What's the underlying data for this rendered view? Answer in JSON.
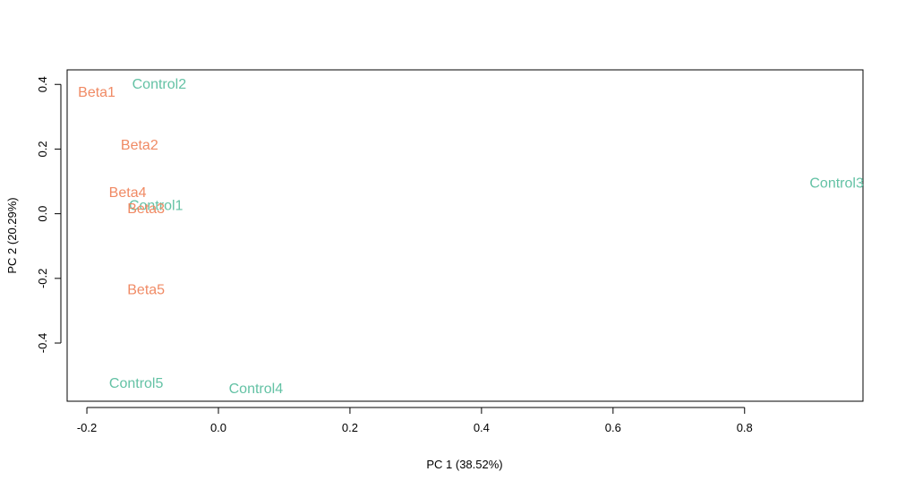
{
  "chart_data": {
    "type": "scatter",
    "title": "",
    "xlabel": "PC 1 (38.52%)",
    "ylabel": "PC 2 (20.29%)",
    "xlim": [
      -0.23,
      0.98
    ],
    "ylim": [
      -0.58,
      0.445
    ],
    "xticks": [
      -0.2,
      0.0,
      0.2,
      0.4,
      0.6,
      0.8
    ],
    "xtick_labels": [
      "-0.2",
      "0.0",
      "0.2",
      "0.4",
      "0.6",
      "0.8"
    ],
    "yticks": [
      -0.4,
      -0.2,
      0.0,
      0.2,
      0.4
    ],
    "ytick_labels": [
      "-0.4",
      "-0.2",
      "0.0",
      "0.2",
      "0.4"
    ],
    "grid": false,
    "legend": "none",
    "colors": {
      "Beta": "#f08a64",
      "Control": "#64c2a5"
    },
    "points": [
      {
        "label": "Beta1",
        "group": "Beta",
        "x": -0.185,
        "y": 0.378
      },
      {
        "label": "Control2",
        "group": "Control",
        "x": -0.09,
        "y": 0.404
      },
      {
        "label": "Beta2",
        "group": "Beta",
        "x": -0.12,
        "y": 0.215
      },
      {
        "label": "Beta4",
        "group": "Beta",
        "x": -0.138,
        "y": 0.068
      },
      {
        "label": "Control1",
        "group": "Control",
        "x": -0.095,
        "y": 0.028
      },
      {
        "label": "Beta3",
        "group": "Beta",
        "x": -0.11,
        "y": 0.018
      },
      {
        "label": "Control3",
        "group": "Control",
        "x": 0.94,
        "y": 0.098
      },
      {
        "label": "Beta5",
        "group": "Beta",
        "x": -0.11,
        "y": -0.233
      },
      {
        "label": "Control5",
        "group": "Control",
        "x": -0.125,
        "y": -0.522
      },
      {
        "label": "Control4",
        "group": "Control",
        "x": 0.057,
        "y": -0.538
      }
    ]
  }
}
